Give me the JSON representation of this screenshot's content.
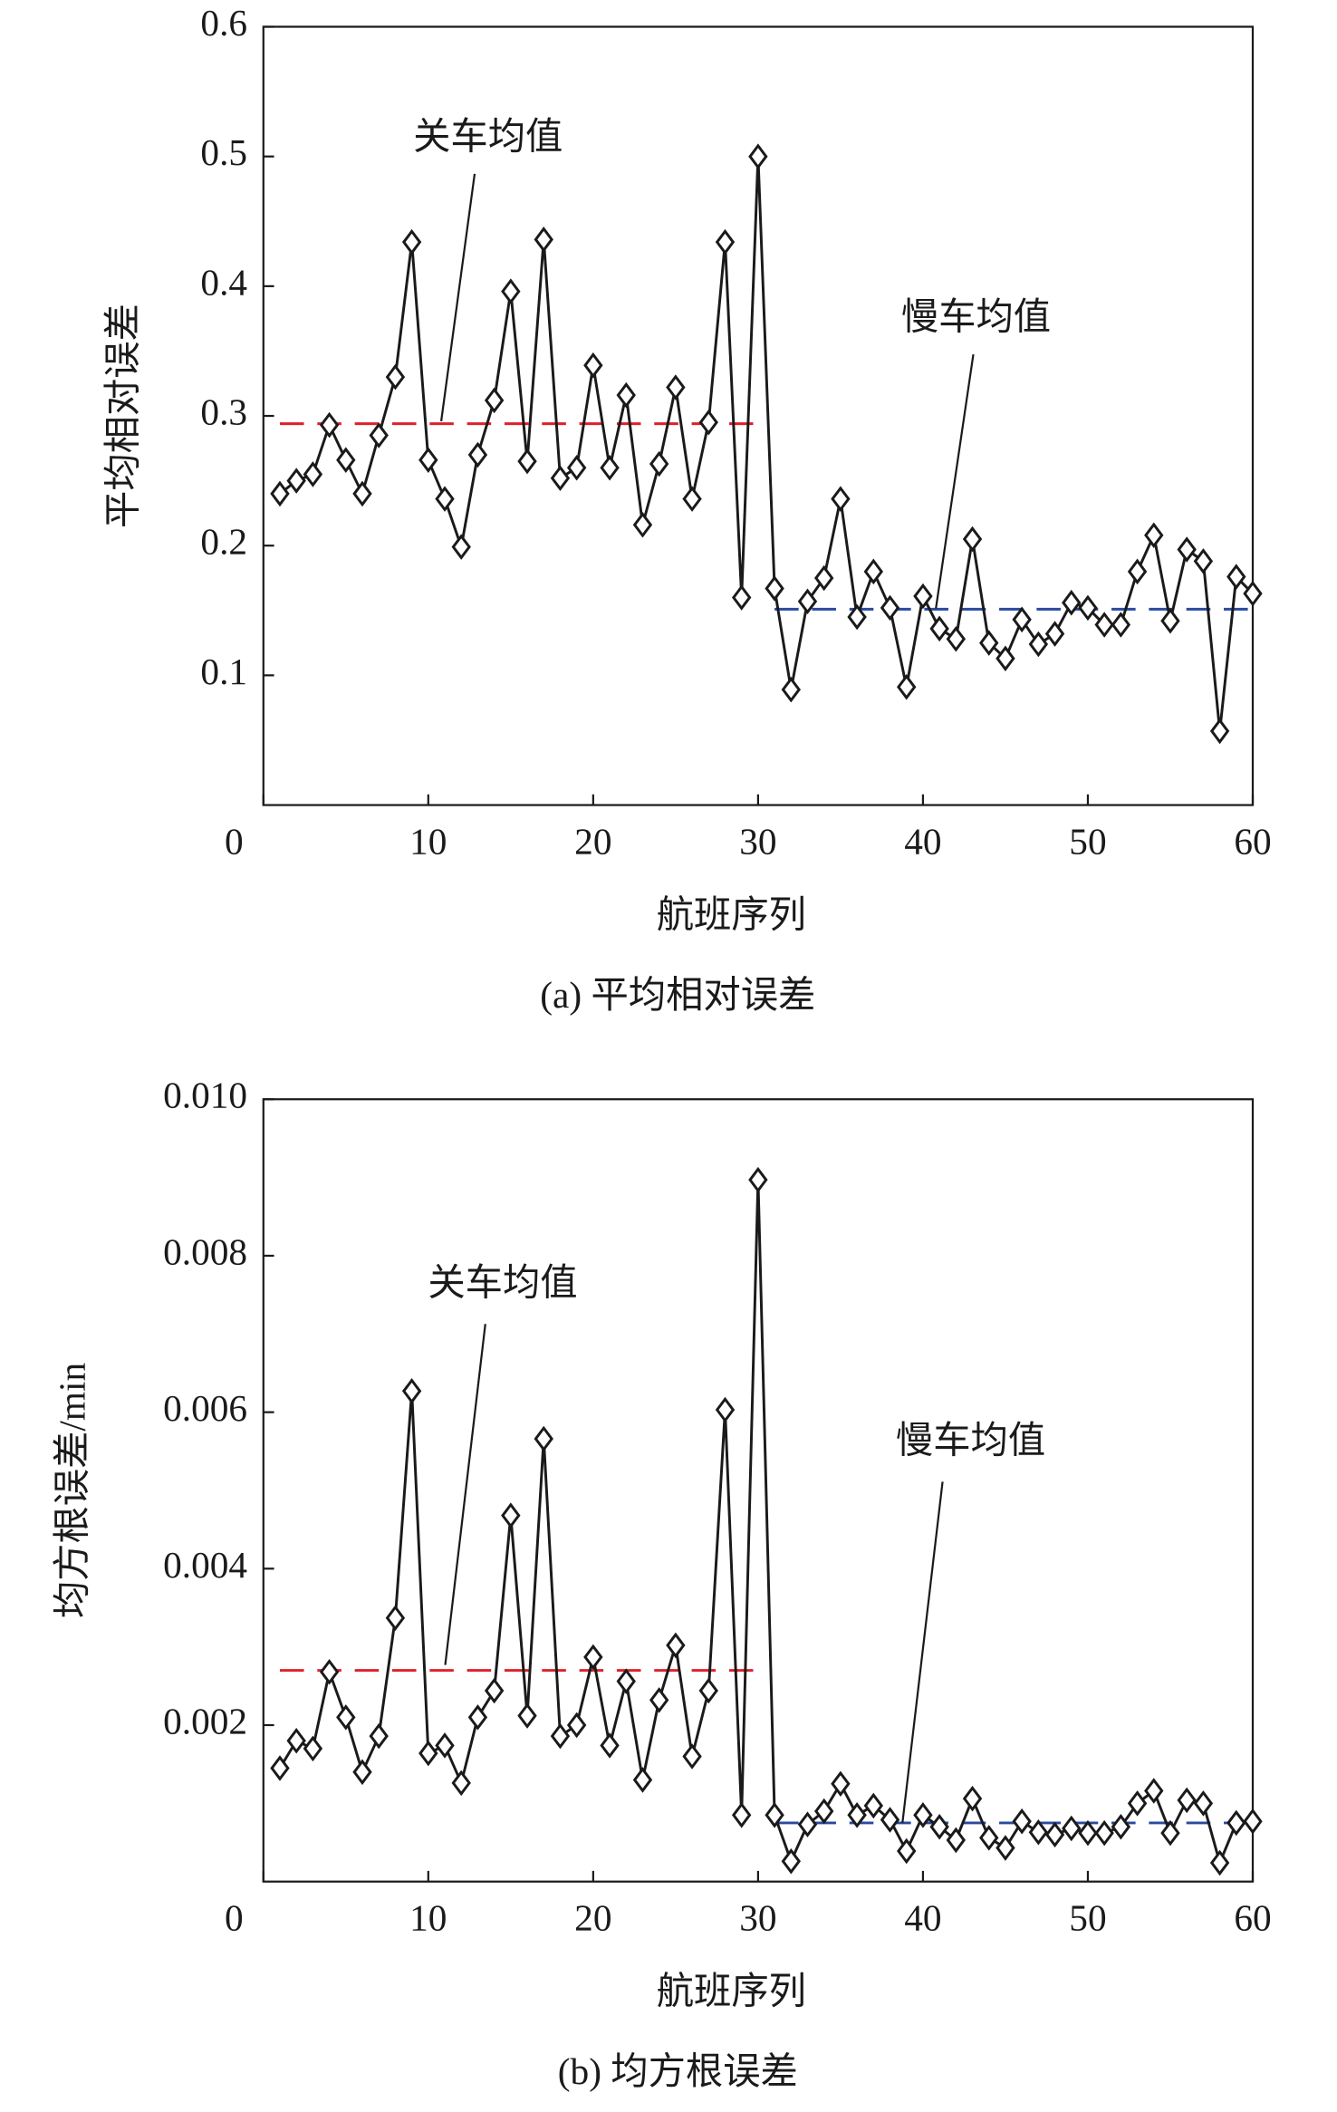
{
  "chart_data": [
    {
      "type": "line",
      "caption": "(a) 平均相对误差",
      "x_label": "航班序列",
      "y_label": "平均相对误差",
      "xlim": [
        0,
        60
      ],
      "xticks": [
        0,
        10,
        20,
        30,
        40,
        50,
        60
      ],
      "ylim": [
        0,
        0.6
      ],
      "yticks": [
        0.1,
        0.2,
        0.3,
        0.4,
        0.5,
        0.6
      ],
      "x": [
        1,
        2,
        3,
        4,
        5,
        6,
        7,
        8,
        9,
        10,
        11,
        12,
        13,
        14,
        15,
        16,
        17,
        18,
        19,
        20,
        21,
        22,
        23,
        24,
        25,
        26,
        27,
        28,
        29,
        30,
        31,
        32,
        33,
        34,
        35,
        36,
        37,
        38,
        39,
        40,
        41,
        42,
        43,
        44,
        45,
        46,
        47,
        48,
        49,
        50,
        51,
        52,
        53,
        54,
        55,
        56,
        57,
        58,
        59,
        60
      ],
      "series": [
        {
          "color": "#1a1a1a",
          "marker": "diamond",
          "values": [
            0.24,
            0.25,
            0.255,
            0.293,
            0.266,
            0.24,
            0.285,
            0.33,
            0.434,
            0.266,
            0.236,
            0.199,
            0.27,
            0.312,
            0.396,
            0.265,
            0.436,
            0.252,
            0.26,
            0.339,
            0.26,
            0.316,
            0.216,
            0.263,
            0.322,
            0.236,
            0.295,
            0.434,
            0.16,
            0.5,
            0.167,
            0.089,
            0.157,
            0.175,
            0.236,
            0.145,
            0.18,
            0.152,
            0.091,
            0.161,
            0.136,
            0.128,
            0.205,
            0.125,
            0.113,
            0.143,
            0.124,
            0.132,
            0.156,
            0.152,
            0.139,
            0.139,
            0.18,
            0.208,
            0.142,
            0.197,
            0.188,
            0.057,
            0.176,
            0.163
          ]
        }
      ],
      "mean_lines": [
        {
          "label": "关车均值",
          "value": 0.294,
          "x": [
            1,
            30
          ],
          "color": "#e0202a"
        },
        {
          "label": "慢车均值",
          "value": 0.151,
          "x": [
            31,
            60
          ],
          "color": "#2a4aa0"
        }
      ]
    },
    {
      "type": "line",
      "caption": "(b) 均方根误差",
      "x_label": "航班序列",
      "y_label": "均方根误差/min",
      "xlim": [
        0,
        60
      ],
      "xticks": [
        0,
        10,
        20,
        30,
        40,
        50,
        60
      ],
      "ylim": [
        0,
        0.01
      ],
      "yticks": [
        0.002,
        0.004,
        0.006,
        0.008,
        {
          "value": 0.01,
          "label": "0.010"
        }
      ],
      "x": [
        1,
        2,
        3,
        4,
        5,
        6,
        7,
        8,
        9,
        10,
        11,
        12,
        13,
        14,
        15,
        16,
        17,
        18,
        19,
        20,
        21,
        22,
        23,
        24,
        25,
        26,
        27,
        28,
        29,
        30,
        31,
        32,
        33,
        34,
        35,
        36,
        37,
        38,
        39,
        40,
        41,
        42,
        43,
        44,
        45,
        46,
        47,
        48,
        49,
        50,
        51,
        52,
        53,
        54,
        55,
        56,
        57,
        58,
        59,
        60
      ],
      "series": [
        {
          "color": "#1a1a1a",
          "marker": "diamond",
          "values": [
            0.00145,
            0.0018,
            0.0017,
            0.00268,
            0.0021,
            0.0014,
            0.00186,
            0.00337,
            0.00627,
            0.00164,
            0.00174,
            0.00126,
            0.0021,
            0.00244,
            0.00468,
            0.00212,
            0.00566,
            0.00186,
            0.002,
            0.00287,
            0.00174,
            0.00256,
            0.0013,
            0.00232,
            0.00302,
            0.0016,
            0.00244,
            0.00603,
            0.00085,
            0.00897,
            0.00085,
            0.00026,
            0.00073,
            0.0009,
            0.00125,
            0.00085,
            0.00097,
            0.00079,
            0.00039,
            0.00085,
            0.0007,
            0.00053,
            0.00106,
            0.00056,
            0.00043,
            0.00077,
            0.00063,
            0.0006,
            0.00068,
            0.00062,
            0.00062,
            0.0007,
            0.001,
            0.00116,
            0.00062,
            0.00104,
            0.001,
            0.00024,
            0.00075,
            0.00077
          ]
        }
      ],
      "mean_lines": [
        {
          "label": "关车均值",
          "value": 0.0027,
          "x": [
            1,
            30
          ],
          "color": "#e0202a"
        },
        {
          "label": "慢车均值",
          "value": 0.00075,
          "x": [
            31,
            60
          ],
          "color": "#2a4aa0"
        }
      ]
    }
  ]
}
